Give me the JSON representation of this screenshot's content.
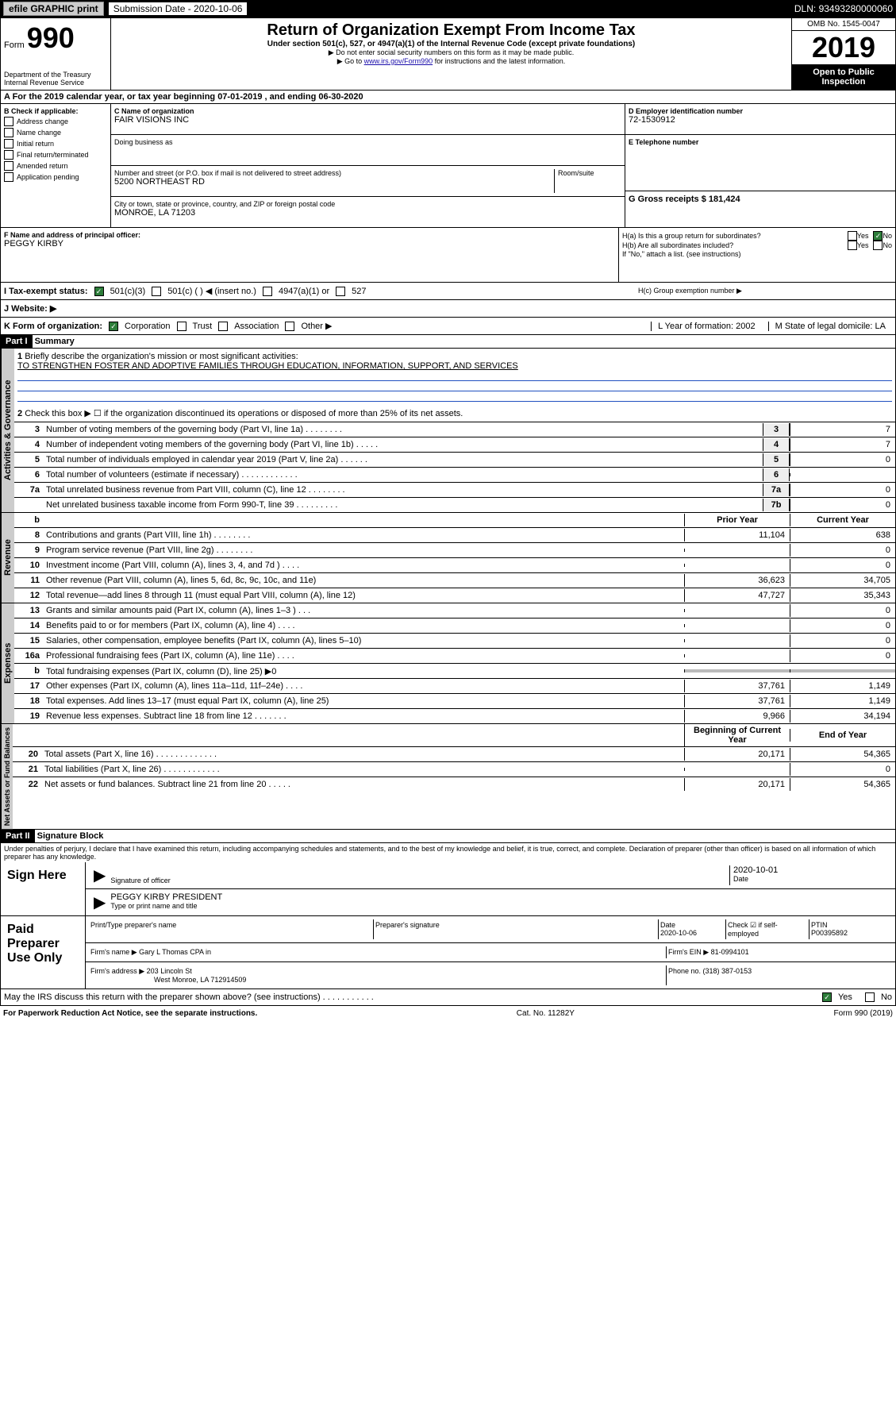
{
  "top_bar": {
    "efile_label": "efile GRAPHIC print",
    "sub_date_label": "Submission Date - 2020-10-06",
    "dln": "DLN: 93493280000060"
  },
  "header": {
    "form_label": "Form",
    "form_no": "990",
    "dept": "Department of the Treasury\nInternal Revenue Service",
    "title": "Return of Organization Exempt From Income Tax",
    "sub1": "Under section 501(c), 527, or 4947(a)(1) of the Internal Revenue Code (except private foundations)",
    "sub2": "▶ Do not enter social security numbers on this form as it may be made public.",
    "sub3_pre": "▶ Go to ",
    "sub3_link": "www.irs.gov/Form990",
    "sub3_post": " for instructions and the latest information.",
    "omb": "OMB No. 1545-0047",
    "year": "2019",
    "open_pub": "Open to Public Inspection"
  },
  "row_a": "A For the 2019 calendar year, or tax year beginning 07-01-2019    , and ending 06-30-2020",
  "box_b": {
    "label": "B Check if applicable:",
    "items": [
      "Address change",
      "Name change",
      "Initial return",
      "Final return/terminated",
      "Amended return",
      "Application pending"
    ]
  },
  "box_c": {
    "name_label": "C Name of organization",
    "name": "FAIR VISIONS INC",
    "dba_label": "Doing business as",
    "addr_label": "Number and street (or P.O. box if mail is not delivered to street address)",
    "room_label": "Room/suite",
    "addr": "5200 NORTHEAST RD",
    "city_label": "City or town, state or province, country, and ZIP or foreign postal code",
    "city": "MONROE, LA  71203"
  },
  "box_d": {
    "label": "D Employer identification number",
    "value": "72-1530912"
  },
  "box_e": {
    "label": "E Telephone number",
    "value": ""
  },
  "box_g": {
    "label": "G Gross receipts $ 181,424"
  },
  "box_f": {
    "label": "F  Name and address of principal officer:",
    "value": "PEGGY KIRBY"
  },
  "box_h": {
    "ha": "H(a)  Is this a group return for subordinates?",
    "hb": "H(b)  Are all subordinates included?",
    "hb_note": "If \"No,\" attach a list. (see instructions)",
    "hc": "H(c)  Group exemption number ▶",
    "yes": "Yes",
    "no": "No"
  },
  "tax_status": {
    "label": "I    Tax-exempt status:",
    "opt1": "501(c)(3)",
    "opt2": "501(c) (  ) ◀ (insert no.)",
    "opt3": "4947(a)(1) or",
    "opt4": "527"
  },
  "website": {
    "label": "J    Website: ▶"
  },
  "row_k": {
    "label": "K Form of organization:",
    "corp": "Corporation",
    "trust": "Trust",
    "assoc": "Association",
    "other": "Other ▶",
    "l_label": "L Year of formation: 2002",
    "m_label": "M State of legal domicile: LA"
  },
  "part1": {
    "header": "Part I",
    "title": "Summary",
    "q1": "Briefly describe the organization's mission or most significant activities:",
    "mission": "TO STRENGTHEN FOSTER AND ADOPTIVE FAMILIES THROUGH EDUCATION, INFORMATION, SUPPORT, AND SERVICES",
    "q2": "Check this box ▶ ☐  if the organization discontinued its operations or disposed of more than 25% of its net assets."
  },
  "side_labels": {
    "gov": "Activities & Governance",
    "rev": "Revenue",
    "exp": "Expenses",
    "net": "Net Assets or Fund Balances"
  },
  "gov_lines": [
    {
      "no": "3",
      "desc": "Number of voting members of the governing body (Part VI, line 1a)  .    .    .    .    .    .    .    .",
      "col": "3",
      "val": "7"
    },
    {
      "no": "4",
      "desc": "Number of independent voting members of the governing body (Part VI, line 1b)  .    .    .    .    .",
      "col": "4",
      "val": "7"
    },
    {
      "no": "5",
      "desc": "Total number of individuals employed in calendar year 2019 (Part V, line 2a)  .    .    .    .    .    .",
      "col": "5",
      "val": "0"
    },
    {
      "no": "6",
      "desc": "Total number of volunteers (estimate if necessary)  .    .    .    .    .    .    .    .    .    .    .    .",
      "col": "6",
      "val": ""
    },
    {
      "no": "7a",
      "desc": "Total unrelated business revenue from Part VIII, column (C), line 12  .    .    .    .    .    .    .    .",
      "col": "7a",
      "val": "0"
    },
    {
      "no": "",
      "desc": "Net unrelated business taxable income from Form 990-T, line 39  .    .    .    .    .    .    .    .    .",
      "col": "7b",
      "val": "0"
    }
  ],
  "year_headers": {
    "prior": "Prior Year",
    "current": "Current Year"
  },
  "rev_lines": [
    {
      "no": "8",
      "desc": "Contributions and grants (Part VIII, line 1h)  .    .    .    .    .    .    .    .",
      "prior": "11,104",
      "curr": "638"
    },
    {
      "no": "9",
      "desc": "Program service revenue (Part VIII, line 2g)  .    .    .    .    .    .    .    .",
      "prior": "",
      "curr": "0"
    },
    {
      "no": "10",
      "desc": "Investment income (Part VIII, column (A), lines 3, 4, and 7d )  .    .    .    .",
      "prior": "",
      "curr": "0"
    },
    {
      "no": "11",
      "desc": "Other revenue (Part VIII, column (A), lines 5, 6d, 8c, 9c, 10c, and 11e)",
      "prior": "36,623",
      "curr": "34,705"
    },
    {
      "no": "12",
      "desc": "Total revenue—add lines 8 through 11 (must equal Part VIII, column (A), line 12)",
      "prior": "47,727",
      "curr": "35,343"
    }
  ],
  "exp_lines": [
    {
      "no": "13",
      "desc": "Grants and similar amounts paid (Part IX, column (A), lines 1–3 )  .    .    .",
      "prior": "",
      "curr": "0"
    },
    {
      "no": "14",
      "desc": "Benefits paid to or for members (Part IX, column (A), line 4)  .    .    .    .",
      "prior": "",
      "curr": "0"
    },
    {
      "no": "15",
      "desc": "Salaries, other compensation, employee benefits (Part IX, column (A), lines 5–10)",
      "prior": "",
      "curr": "0"
    },
    {
      "no": "16a",
      "desc": "Professional fundraising fees (Part IX, column (A), line 11e)  .    .    .    .",
      "prior": "",
      "curr": "0"
    },
    {
      "no": "b",
      "desc": "Total fundraising expenses (Part IX, column (D), line 25) ▶0",
      "prior": "GREY",
      "curr": "GREY"
    },
    {
      "no": "17",
      "desc": "Other expenses (Part IX, column (A), lines 11a–11d, 11f–24e)  .    .    .    .",
      "prior": "37,761",
      "curr": "1,149"
    },
    {
      "no": "18",
      "desc": "Total expenses. Add lines 13–17 (must equal Part IX, column (A), line 25)",
      "prior": "37,761",
      "curr": "1,149"
    },
    {
      "no": "19",
      "desc": "Revenue less expenses. Subtract line 18 from line 12  .    .    .    .    .    .    .",
      "prior": "9,966",
      "curr": "34,194"
    }
  ],
  "net_headers": {
    "begin": "Beginning of Current Year",
    "end": "End of Year"
  },
  "net_lines": [
    {
      "no": "20",
      "desc": "Total assets (Part X, line 16)  .    .    .    .    .    .    .    .    .    .    .    .    .",
      "prior": "20,171",
      "curr": "54,365"
    },
    {
      "no": "21",
      "desc": "Total liabilities (Part X, line 26)  .    .    .    .    .    .    .    .    .    .    .    .",
      "prior": "",
      "curr": "0"
    },
    {
      "no": "22",
      "desc": "Net assets or fund balances. Subtract line 21 from line 20  .    .    .    .    .",
      "prior": "20,171",
      "curr": "54,365"
    }
  ],
  "part2": {
    "header": "Part II",
    "title": "Signature Block",
    "declaration": "Under penalties of perjury, I declare that I have examined this return, including accompanying schedules and statements, and to the best of my knowledge and belief, it is true, correct, and complete. Declaration of preparer (other than officer) is based on all information of which preparer has any knowledge."
  },
  "sign": {
    "label": "Sign Here",
    "sig_of": "Signature of officer",
    "date": "2020-10-01",
    "date_label": "Date",
    "name": "PEGGY KIRBY PRESIDENT",
    "name_label": "Type or print name and title"
  },
  "paid": {
    "label": "Paid Preparer Use Only",
    "h1": "Print/Type preparer's name",
    "h2": "Preparer's signature",
    "h3": "Date",
    "h3v": "2020-10-06",
    "h4": "Check ☑ if self-employed",
    "h5": "PTIN",
    "h5v": "P00395892",
    "firm_name_label": "Firm's name    ▶",
    "firm_name": "Gary L Thomas CPA in",
    "firm_ein_label": "Firm's EIN ▶ 81-0994101",
    "firm_addr_label": "Firm's address ▶",
    "firm_addr": "203 Lincoln St",
    "firm_addr2": "West Monroe, LA  712914509",
    "phone_label": "Phone no. (318) 387-0153"
  },
  "bottom": {
    "discuss": "May the IRS discuss this return with the preparer shown above? (see instructions)   .    .    .    .    .    .    .    .    .    .    .",
    "yes": "Yes",
    "no": "No",
    "pra": "For Paperwork Reduction Act Notice, see the separate instructions.",
    "cat": "Cat. No. 11282Y",
    "form": "Form 990 (2019)"
  }
}
